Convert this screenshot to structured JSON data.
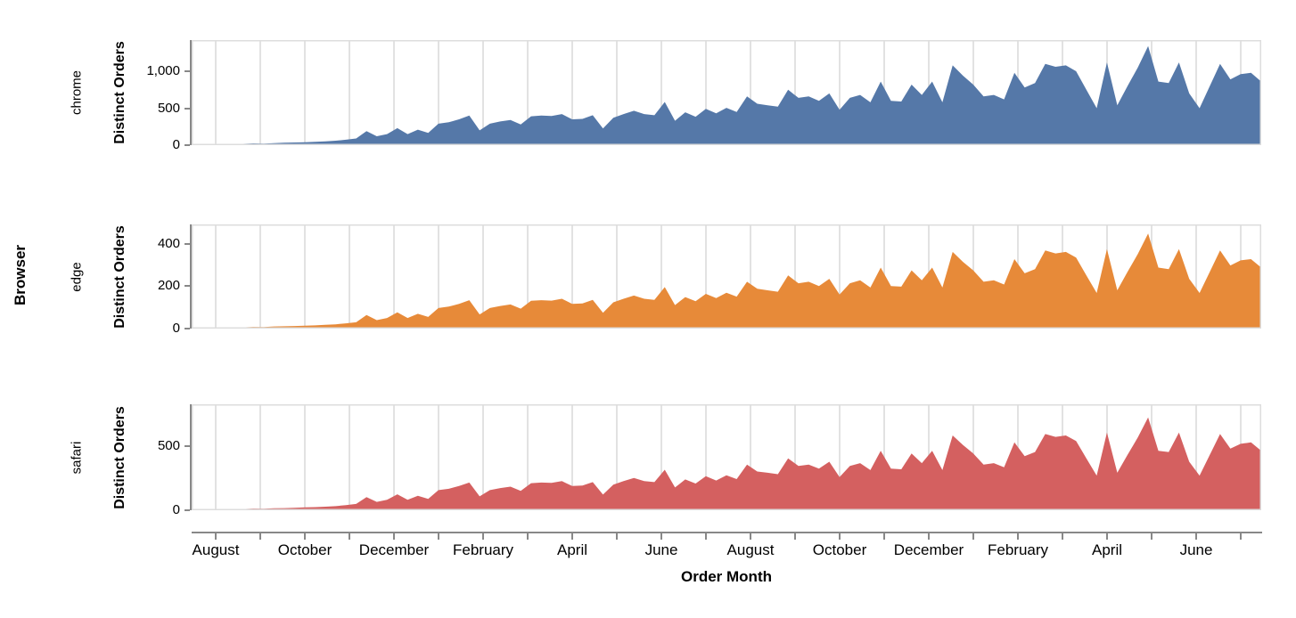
{
  "figure": {
    "facet_title": "Browser"
  },
  "chart_data": {
    "type": "area",
    "subtype": "faceted-trellis",
    "facet_field": "Browser",
    "x_label": "Order Month",
    "y_label": "Distinct Orders",
    "x_interval": "weekly",
    "x_span_months": 24,
    "x_tick_labels": [
      "August",
      "October",
      "December",
      "February",
      "April",
      "June",
      "August",
      "October",
      "December",
      "February",
      "April",
      "June"
    ],
    "grid": true,
    "legend": "none",
    "colors": {
      "chrome": "#5578a8",
      "edge": "#e78a39",
      "safari": "#d46060"
    },
    "series": [
      {
        "name": "chrome",
        "color": "#5578a8",
        "y_ticks": [
          {
            "value": 0,
            "label": "0"
          },
          {
            "value": 500,
            "label": "500"
          },
          {
            "value": 1000,
            "label": "1,000"
          }
        ],
        "y_axis_max": 1422,
        "values": [
          6,
          8,
          10,
          12,
          14,
          18,
          24,
          22,
          28,
          32,
          36,
          40,
          44,
          52,
          60,
          74,
          90,
          190,
          120,
          150,
          230,
          150,
          210,
          165,
          290,
          310,
          350,
          400,
          200,
          290,
          320,
          340,
          280,
          390,
          400,
          395,
          420,
          350,
          355,
          405,
          225,
          370,
          420,
          465,
          420,
          405,
          585,
          330,
          445,
          385,
          490,
          430,
          505,
          450,
          660,
          560,
          540,
          520,
          750,
          640,
          660,
          600,
          700,
          480,
          640,
          680,
          580,
          860,
          600,
          590,
          820,
          680,
          860,
          580,
          1080,
          940,
          820,
          660,
          680,
          620,
          980,
          780,
          840,
          1100,
          1060,
          1080,
          1000,
          750,
          500,
          1120,
          540,
          800,
          1050,
          1340,
          860,
          840,
          1120,
          700,
          500,
          800,
          1100,
          890,
          960,
          980,
          860
        ]
      },
      {
        "name": "edge",
        "color": "#e78a39",
        "y_ticks": [
          {
            "value": 0,
            "label": "0"
          },
          {
            "value": 200,
            "label": "200"
          },
          {
            "value": 400,
            "label": "400"
          }
        ],
        "y_axis_max": 492,
        "values": [
          2,
          3,
          4,
          4,
          5,
          6,
          8,
          7,
          10,
          11,
          12,
          14,
          15,
          18,
          20,
          25,
          30,
          64,
          40,
          50,
          77,
          50,
          70,
          55,
          97,
          104,
          117,
          134,
          67,
          97,
          107,
          114,
          94,
          131,
          134,
          132,
          141,
          117,
          119,
          136,
          75,
          124,
          141,
          156,
          141,
          136,
          196,
          111,
          149,
          129,
          164,
          144,
          169,
          151,
          221,
          188,
          181,
          174,
          251,
          214,
          221,
          201,
          235,
          161,
          214,
          228,
          194,
          288,
          201,
          198,
          275,
          228,
          288,
          194,
          362,
          315,
          275,
          221,
          228,
          208,
          328,
          261,
          281,
          369,
          355,
          362,
          335,
          251,
          168,
          375,
          181,
          268,
          352,
          449,
          288,
          281,
          375,
          235,
          168,
          268,
          369,
          298,
          322,
          328,
          288
        ]
      },
      {
        "name": "safari",
        "color": "#d46060",
        "y_ticks": [
          {
            "value": 0,
            "label": "0"
          },
          {
            "value": 500,
            "label": "500"
          }
        ],
        "y_axis_max": 826,
        "values": [
          3,
          4,
          5,
          6,
          8,
          10,
          13,
          12,
          15,
          17,
          19,
          22,
          24,
          28,
          32,
          40,
          49,
          103,
          65,
          81,
          124,
          81,
          113,
          89,
          157,
          167,
          189,
          216,
          108,
          157,
          173,
          184,
          151,
          211,
          216,
          213,
          227,
          189,
          192,
          219,
          122,
          200,
          227,
          251,
          227,
          219,
          316,
          178,
          240,
          208,
          265,
          232,
          273,
          243,
          356,
          302,
          292,
          281,
          405,
          346,
          356,
          324,
          378,
          259,
          346,
          367,
          313,
          464,
          324,
          319,
          443,
          367,
          464,
          313,
          583,
          508,
          443,
          356,
          367,
          335,
          529,
          421,
          454,
          594,
          572,
          583,
          540,
          405,
          270,
          605,
          292,
          432,
          567,
          724,
          464,
          454,
          605,
          378,
          270,
          432,
          594,
          481,
          518,
          529,
          464
        ]
      }
    ]
  },
  "style": {
    "grid_color": "#dddddd",
    "frame_color": "#dddddd",
    "axis_color": "#888888",
    "label_color": "#000000"
  }
}
